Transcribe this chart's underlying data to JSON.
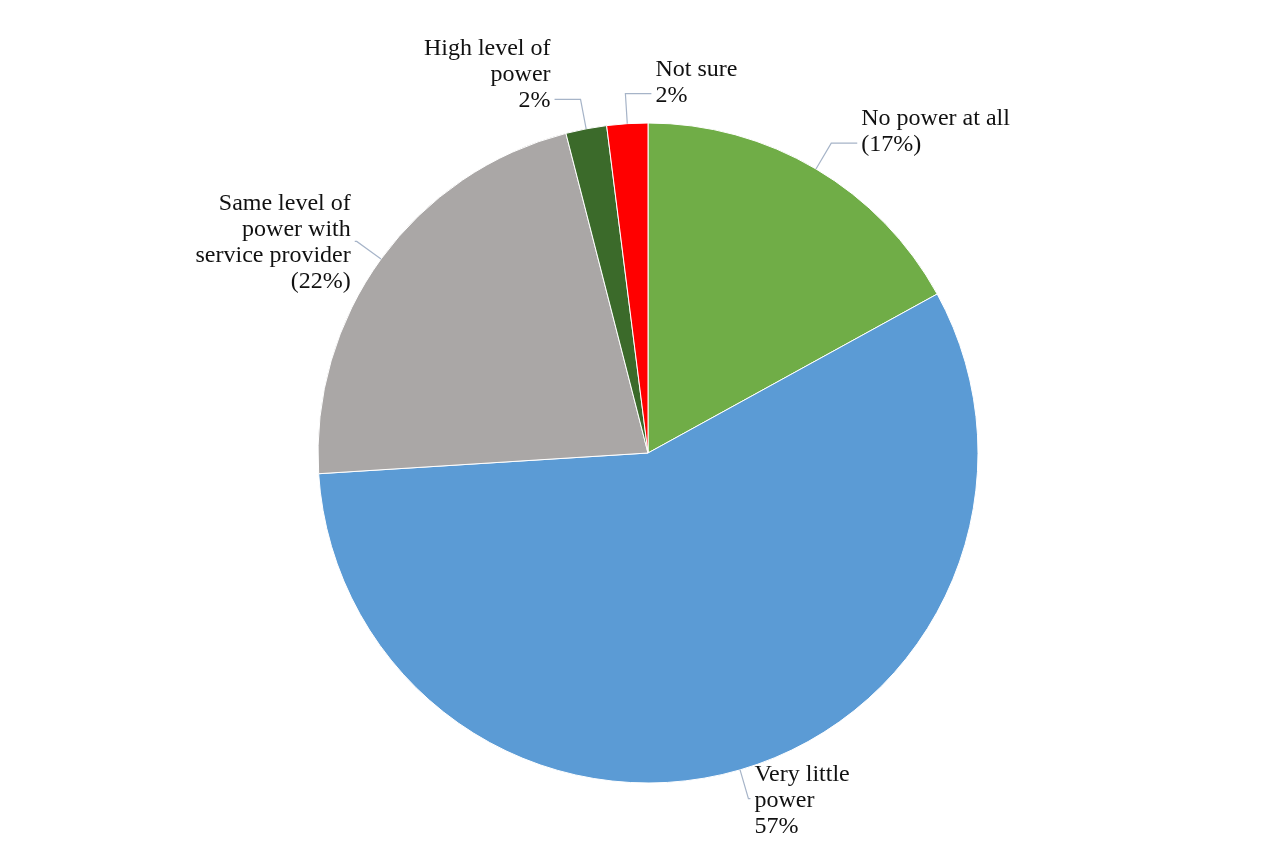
{
  "chart_data": {
    "type": "pie",
    "categories": [
      "No power at all",
      "Very little power",
      "Same level of power with service provider",
      "High level of power",
      "Not sure"
    ],
    "values": [
      17,
      57,
      22,
      2,
      2
    ],
    "colors": [
      "#70ad47",
      "#5b9bd5",
      "#aaa7a6",
      "#3b6a2a",
      "#ff0000"
    ],
    "value_labels": [
      "(17%)",
      "57%",
      "(22%)",
      "2%",
      "2%"
    ]
  }
}
